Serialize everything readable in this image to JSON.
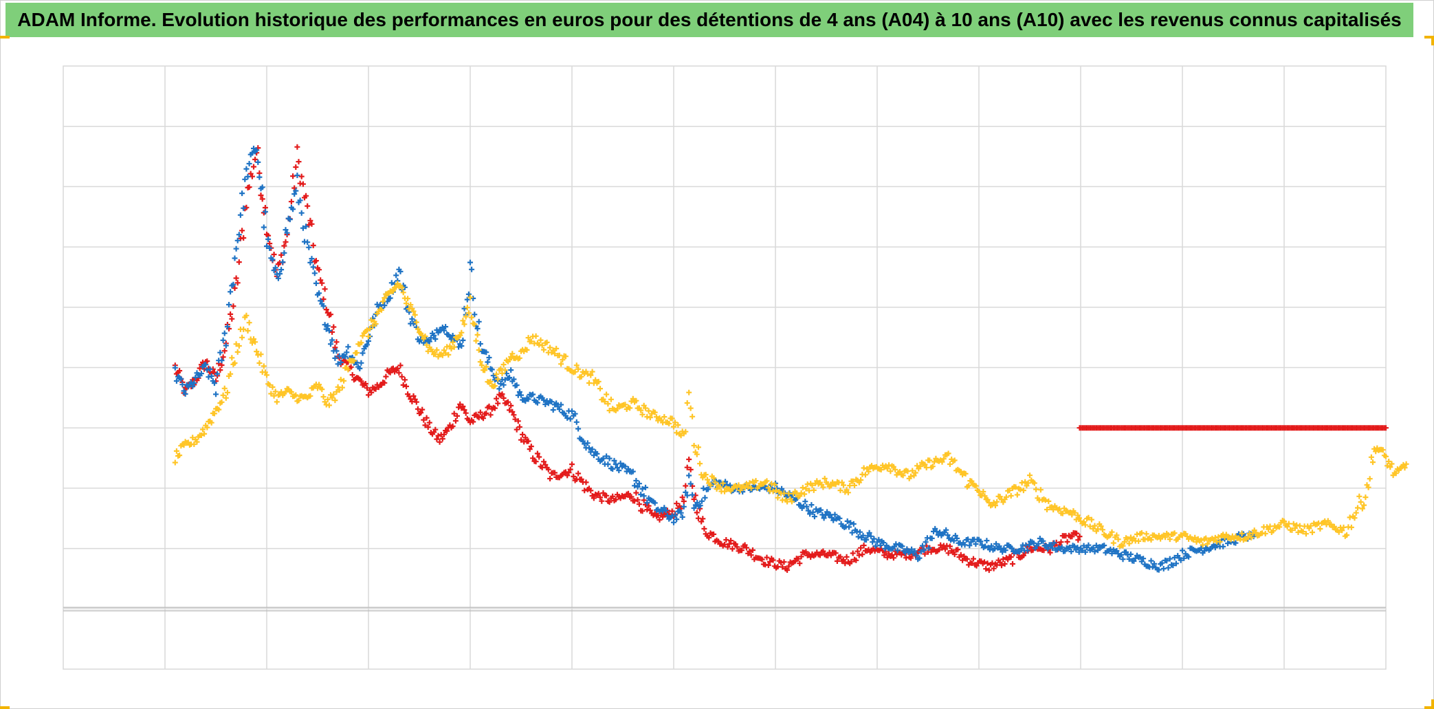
{
  "title": "ADAM Informe. Evolution historique des performances en euros pour des détentions de 4 ans (A04) à 10 ans (A10) avec les revenus connus capitalisés",
  "colors": {
    "title_bg": "#7fcf7a",
    "accent": "#f2b400",
    "grid": "#d9d9d9",
    "axis": "#bfbfbf",
    "series": [
      "#e31b1b",
      "#1f73c4",
      "#ffc527"
    ]
  },
  "chart_data": {
    "type": "scatter",
    "marker": "plus",
    "x_tick_labels_visible": false,
    "y_tick_labels_visible": false,
    "grid": true,
    "legend": "none",
    "x_divisions": 13,
    "xlim": [
      0,
      13
    ],
    "ylim": [
      -1,
      9
    ],
    "series": [
      {
        "color": "#e31b1b",
        "points": [
          [
            1.1,
            4.0
          ],
          [
            1.2,
            3.6
          ],
          [
            1.3,
            3.8
          ],
          [
            1.4,
            4.1
          ],
          [
            1.5,
            3.8
          ],
          [
            1.6,
            4.4
          ],
          [
            1.7,
            5.3
          ],
          [
            1.8,
            6.8
          ],
          [
            1.9,
            7.6
          ],
          [
            2.0,
            6.4
          ],
          [
            2.1,
            5.5
          ],
          [
            2.2,
            6.2
          ],
          [
            2.3,
            7.5
          ],
          [
            2.4,
            6.6
          ],
          [
            2.5,
            5.6
          ],
          [
            2.6,
            5.0
          ],
          [
            2.7,
            4.2
          ],
          [
            2.8,
            4.0
          ],
          [
            2.9,
            3.8
          ],
          [
            3.0,
            3.6
          ],
          [
            3.1,
            3.7
          ],
          [
            3.2,
            3.9
          ],
          [
            3.3,
            4.0
          ],
          [
            3.4,
            3.6
          ],
          [
            3.5,
            3.3
          ],
          [
            3.6,
            3.0
          ],
          [
            3.7,
            2.8
          ],
          [
            3.8,
            3.0
          ],
          [
            3.9,
            3.4
          ],
          [
            4.0,
            3.1
          ],
          [
            4.1,
            3.2
          ],
          [
            4.2,
            3.3
          ],
          [
            4.3,
            3.5
          ],
          [
            4.4,
            3.3
          ],
          [
            4.5,
            2.9
          ],
          [
            4.6,
            2.6
          ],
          [
            4.8,
            2.2
          ],
          [
            5.0,
            2.3
          ],
          [
            5.2,
            1.9
          ],
          [
            5.4,
            1.8
          ],
          [
            5.6,
            1.9
          ],
          [
            5.8,
            1.5
          ],
          [
            6.0,
            1.6
          ],
          [
            6.1,
            1.8
          ],
          [
            6.15,
            2.4
          ],
          [
            6.2,
            1.9
          ],
          [
            6.3,
            1.3
          ],
          [
            6.5,
            1.1
          ],
          [
            6.7,
            1.0
          ],
          [
            6.9,
            0.8
          ],
          [
            7.1,
            0.7
          ],
          [
            7.3,
            0.9
          ],
          [
            7.5,
            0.9
          ],
          [
            7.7,
            0.8
          ],
          [
            7.9,
            1.0
          ],
          [
            8.1,
            0.9
          ],
          [
            8.3,
            0.9
          ],
          [
            8.5,
            1.0
          ],
          [
            8.7,
            1.0
          ],
          [
            8.9,
            0.8
          ],
          [
            9.1,
            0.7
          ],
          [
            9.3,
            0.8
          ],
          [
            9.5,
            1.0
          ],
          [
            9.7,
            1.0
          ],
          [
            9.9,
            1.2
          ],
          [
            9.99,
            1.2
          ]
        ]
      },
      {
        "color": "#e31b1b",
        "points": [
          [
            9.99,
            3.0
          ],
          [
            10.5,
            3.0
          ],
          [
            11.0,
            3.0
          ],
          [
            11.5,
            3.0
          ],
          [
            12.0,
            3.0
          ],
          [
            12.5,
            3.0
          ],
          [
            13.0,
            3.0
          ]
        ]
      },
      {
        "color": "#1f73c4",
        "points": [
          [
            1.1,
            3.9
          ],
          [
            1.2,
            3.6
          ],
          [
            1.3,
            3.8
          ],
          [
            1.4,
            4.0
          ],
          [
            1.5,
            3.7
          ],
          [
            1.6,
            4.6
          ],
          [
            1.7,
            6.0
          ],
          [
            1.8,
            7.2
          ],
          [
            1.9,
            7.7
          ],
          [
            2.0,
            6.1
          ],
          [
            2.1,
            5.4
          ],
          [
            2.2,
            6.3
          ],
          [
            2.3,
            7.0
          ],
          [
            2.4,
            6.0
          ],
          [
            2.5,
            5.2
          ],
          [
            2.6,
            4.7
          ],
          [
            2.7,
            4.1
          ],
          [
            2.8,
            4.3
          ],
          [
            2.9,
            4.0
          ],
          [
            3.0,
            4.5
          ],
          [
            3.1,
            5.0
          ],
          [
            3.2,
            5.2
          ],
          [
            3.3,
            5.6
          ],
          [
            3.4,
            4.9
          ],
          [
            3.5,
            4.5
          ],
          [
            3.6,
            4.4
          ],
          [
            3.7,
            4.7
          ],
          [
            3.8,
            4.6
          ],
          [
            3.9,
            4.3
          ],
          [
            4.0,
            5.6
          ],
          [
            4.1,
            4.4
          ],
          [
            4.2,
            4.0
          ],
          [
            4.3,
            3.7
          ],
          [
            4.4,
            3.9
          ],
          [
            4.5,
            3.5
          ],
          [
            4.6,
            3.5
          ],
          [
            4.8,
            3.4
          ],
          [
            5.0,
            3.2
          ],
          [
            5.2,
            2.6
          ],
          [
            5.4,
            2.4
          ],
          [
            5.6,
            2.2
          ],
          [
            5.8,
            1.7
          ],
          [
            6.0,
            1.5
          ],
          [
            6.1,
            1.6
          ],
          [
            6.15,
            2.2
          ],
          [
            6.2,
            1.7
          ],
          [
            6.4,
            2.1
          ],
          [
            6.6,
            2.0
          ],
          [
            6.8,
            2.0
          ],
          [
            7.0,
            2.0
          ],
          [
            7.2,
            1.8
          ],
          [
            7.4,
            1.6
          ],
          [
            7.6,
            1.5
          ],
          [
            7.8,
            1.3
          ],
          [
            8.0,
            1.1
          ],
          [
            8.2,
            1.0
          ],
          [
            8.4,
            0.9
          ],
          [
            8.6,
            1.3
          ],
          [
            8.8,
            1.1
          ],
          [
            9.0,
            1.1
          ],
          [
            9.2,
            1.0
          ],
          [
            9.4,
            1.0
          ],
          [
            9.6,
            1.1
          ],
          [
            9.8,
            1.0
          ],
          [
            10.0,
            1.0
          ],
          [
            10.2,
            1.0
          ],
          [
            10.4,
            0.9
          ],
          [
            10.6,
            0.8
          ],
          [
            10.8,
            0.7
          ],
          [
            11.0,
            0.9
          ],
          [
            11.2,
            1.0
          ],
          [
            11.4,
            1.1
          ],
          [
            11.6,
            1.2
          ],
          [
            11.7,
            1.2
          ]
        ]
      },
      {
        "color": "#ffc527",
        "points": [
          [
            1.1,
            2.5
          ],
          [
            1.2,
            2.7
          ],
          [
            1.3,
            2.8
          ],
          [
            1.4,
            3.0
          ],
          [
            1.5,
            3.3
          ],
          [
            1.6,
            3.6
          ],
          [
            1.7,
            4.3
          ],
          [
            1.8,
            4.8
          ],
          [
            1.9,
            4.3
          ],
          [
            2.0,
            3.8
          ],
          [
            2.1,
            3.5
          ],
          [
            2.2,
            3.6
          ],
          [
            2.3,
            3.5
          ],
          [
            2.4,
            3.5
          ],
          [
            2.5,
            3.7
          ],
          [
            2.6,
            3.4
          ],
          [
            2.7,
            3.6
          ],
          [
            2.8,
            4.0
          ],
          [
            2.9,
            4.4
          ],
          [
            3.0,
            4.6
          ],
          [
            3.1,
            4.9
          ],
          [
            3.2,
            5.2
          ],
          [
            3.3,
            5.4
          ],
          [
            3.4,
            5.0
          ],
          [
            3.5,
            4.7
          ],
          [
            3.6,
            4.3
          ],
          [
            3.7,
            4.2
          ],
          [
            3.8,
            4.3
          ],
          [
            3.9,
            4.6
          ],
          [
            4.0,
            5.0
          ],
          [
            4.1,
            4.2
          ],
          [
            4.2,
            3.7
          ],
          [
            4.3,
            3.9
          ],
          [
            4.4,
            4.2
          ],
          [
            4.5,
            4.2
          ],
          [
            4.6,
            4.5
          ],
          [
            4.8,
            4.3
          ],
          [
            5.0,
            4.0
          ],
          [
            5.2,
            3.8
          ],
          [
            5.4,
            3.3
          ],
          [
            5.6,
            3.4
          ],
          [
            5.8,
            3.2
          ],
          [
            6.0,
            3.1
          ],
          [
            6.1,
            2.8
          ],
          [
            6.15,
            3.6
          ],
          [
            6.2,
            2.8
          ],
          [
            6.3,
            2.2
          ],
          [
            6.5,
            2.0
          ],
          [
            6.7,
            2.0
          ],
          [
            6.9,
            2.1
          ],
          [
            7.1,
            1.8
          ],
          [
            7.3,
            2.0
          ],
          [
            7.5,
            2.1
          ],
          [
            7.7,
            2.0
          ],
          [
            7.9,
            2.3
          ],
          [
            8.1,
            2.4
          ],
          [
            8.3,
            2.2
          ],
          [
            8.5,
            2.4
          ],
          [
            8.7,
            2.5
          ],
          [
            8.9,
            2.1
          ],
          [
            9.0,
            2.0
          ],
          [
            9.1,
            1.7
          ],
          [
            9.3,
            1.9
          ],
          [
            9.5,
            2.1
          ],
          [
            9.7,
            1.7
          ],
          [
            9.9,
            1.6
          ],
          [
            10.0,
            1.5
          ],
          [
            10.2,
            1.3
          ],
          [
            10.4,
            1.1
          ],
          [
            10.6,
            1.2
          ],
          [
            10.8,
            1.2
          ],
          [
            11.0,
            1.2
          ],
          [
            11.2,
            1.1
          ],
          [
            11.4,
            1.2
          ],
          [
            11.6,
            1.2
          ],
          [
            11.8,
            1.3
          ],
          [
            12.0,
            1.4
          ],
          [
            12.2,
            1.3
          ],
          [
            12.4,
            1.4
          ],
          [
            12.6,
            1.3
          ],
          [
            12.8,
            1.9
          ],
          [
            12.9,
            2.7
          ],
          [
            13.0,
            2.5
          ],
          [
            13.1,
            2.2
          ],
          [
            13.2,
            2.4
          ]
        ]
      }
    ]
  }
}
